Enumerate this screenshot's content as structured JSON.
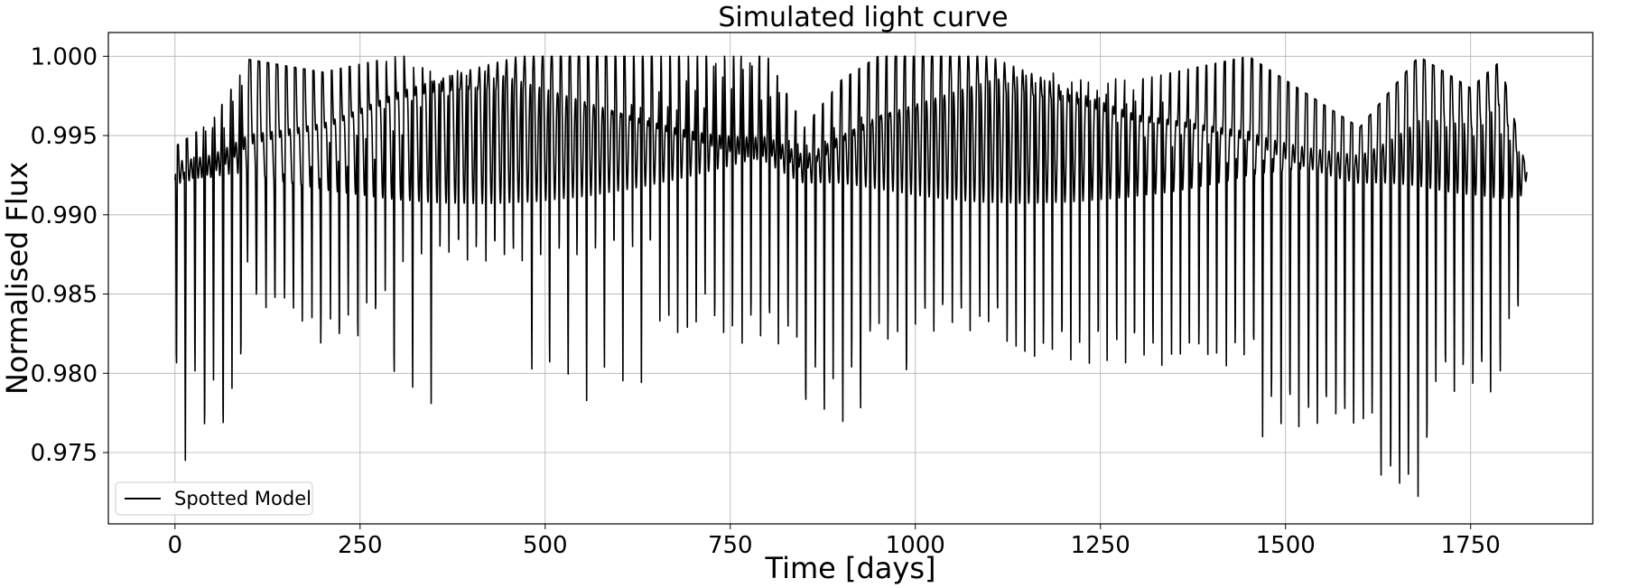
{
  "chart_data": {
    "type": "line",
    "title": "Simulated light curve",
    "xlabel": "Time [days]",
    "ylabel": "Normalised Flux",
    "xlim": [
      -90,
      1915
    ],
    "ylim": [
      0.9705,
      1.0015
    ],
    "x_ticks": [
      0,
      250,
      500,
      750,
      1000,
      1250,
      1500,
      1750
    ],
    "x_tick_labels": [
      "0",
      "250",
      "500",
      "750",
      "1000",
      "1250",
      "1500",
      "1750"
    ],
    "y_ticks": [
      0.975,
      0.98,
      0.985,
      0.99,
      0.995,
      1.0
    ],
    "y_tick_labels": [
      "0.975",
      "0.980",
      "0.985",
      "0.990",
      "0.995",
      "1.000"
    ],
    "grid": true,
    "legend_position": "bottom-left",
    "line_color": "#000000",
    "series": [
      {
        "name": "Spotted Model",
        "color": "#000000",
        "x_range": [
          0,
          1826
        ],
        "dip_times": [
          2,
          14,
          27,
          40,
          52,
          65,
          77,
          89,
          98,
          110,
          123,
          135,
          148,
          160,
          172,
          185,
          197,
          210,
          222,
          234,
          247,
          259,
          271,
          284,
          296,
          308,
          321,
          333,
          346,
          358,
          370,
          383,
          395,
          407,
          420,
          432,
          445,
          457,
          469,
          482,
          494,
          506,
          519,
          531,
          543,
          556,
          568,
          580,
          593,
          605,
          618,
          630,
          642,
          655,
          667,
          679,
          692,
          704,
          716,
          729,
          741,
          753,
          766,
          778,
          791,
          803,
          815,
          828,
          840,
          852,
          865,
          877,
          889,
          902,
          914,
          926,
          939,
          951,
          963,
          976,
          988,
          1000,
          1013,
          1025,
          1037,
          1050,
          1062,
          1074,
          1087,
          1099,
          1111,
          1124,
          1136,
          1148,
          1161,
          1173,
          1185,
          1198,
          1210,
          1222,
          1235,
          1247,
          1259,
          1272,
          1284,
          1296,
          1309,
          1321,
          1333,
          1346,
          1358,
          1370,
          1383,
          1395,
          1407,
          1420,
          1432,
          1444,
          1457,
          1469,
          1481,
          1494,
          1506,
          1518,
          1531,
          1543,
          1555,
          1568,
          1580,
          1592,
          1605,
          1617,
          1629,
          1642,
          1654,
          1666,
          1679,
          1691,
          1703,
          1716,
          1728,
          1740,
          1753,
          1765,
          1777,
          1790,
          1802,
          1814
        ],
        "dip_minima": [
          0.979,
          0.9745,
          0.979,
          0.9745,
          0.979,
          0.9745,
          0.979,
          0.979,
          0.987,
          0.984,
          0.9837,
          0.9837,
          0.9838,
          0.9833,
          0.9828,
          0.9831,
          0.9807,
          0.9833,
          0.9805,
          0.9833,
          0.9805,
          0.9843,
          0.9822,
          0.9845,
          0.978,
          0.9869,
          0.9778,
          0.9869,
          0.9776,
          0.9869,
          0.9869,
          0.9869,
          0.9869,
          0.9869,
          0.9869,
          0.9869,
          0.9869,
          0.9869,
          0.9869,
          0.9793,
          0.9869,
          0.9791,
          0.9869,
          0.979,
          0.9869,
          0.978,
          0.9869,
          0.9795,
          0.9869,
          0.9793,
          0.9869,
          0.9789,
          0.9869,
          0.9822,
          0.9822,
          0.9821,
          0.9821,
          0.9821,
          0.9837,
          0.9818,
          0.9818,
          0.9818,
          0.9818,
          0.9818,
          0.9818,
          0.9818,
          0.9818,
          0.9818,
          0.9818,
          0.9762,
          0.9792,
          0.9762,
          0.979,
          0.9762,
          0.979,
          0.9762,
          0.9808,
          0.9826,
          0.9808,
          0.9826,
          0.978,
          0.9826,
          0.9826,
          0.9826,
          0.9826,
          0.9826,
          0.9826,
          0.9826,
          0.9826,
          0.9826,
          0.9826,
          0.9806,
          0.9806,
          0.9806,
          0.9806,
          0.9804,
          0.9804,
          0.9804,
          0.9804,
          0.9804,
          0.9804,
          0.9804,
          0.9804,
          0.9804,
          0.9804,
          0.9803,
          0.9802,
          0.9802,
          0.9802,
          0.9802,
          0.9802,
          0.9802,
          0.9802,
          0.9802,
          0.9802,
          0.9802,
          0.9802,
          0.9802,
          0.9802,
          0.9757,
          0.9765,
          0.9764,
          0.9764,
          0.9764,
          0.9764,
          0.9764,
          0.9764,
          0.9764,
          0.9764,
          0.9764,
          0.9764,
          0.9764,
          0.9718,
          0.9719,
          0.9721,
          0.9721,
          0.9721,
          0.9737,
          0.9788,
          0.9788,
          0.9788,
          0.9788,
          0.9788,
          0.9788,
          0.9788,
          0.9788
        ],
        "upper_envelope": [
          [
            0,
            0.9943
          ],
          [
            50,
            0.9959
          ],
          [
            100,
            0.9998
          ],
          [
            200,
            0.999
          ],
          [
            300,
            1.0
          ],
          [
            500,
            1.0
          ],
          [
            800,
            1.0
          ],
          [
            850,
            0.9955
          ],
          [
            900,
            0.9985
          ],
          [
            950,
            1.0
          ],
          [
            1100,
            1.0
          ],
          [
            1300,
            0.9985
          ],
          [
            1450,
            1.0
          ],
          [
            1500,
            0.9985
          ],
          [
            1600,
            0.9955
          ],
          [
            1680,
            1.0
          ],
          [
            1750,
            0.998
          ],
          [
            1790,
            0.9997
          ],
          [
            1826,
            0.9927
          ]
        ],
        "mid_range": [
          0.988,
          0.996
        ]
      }
    ]
  }
}
